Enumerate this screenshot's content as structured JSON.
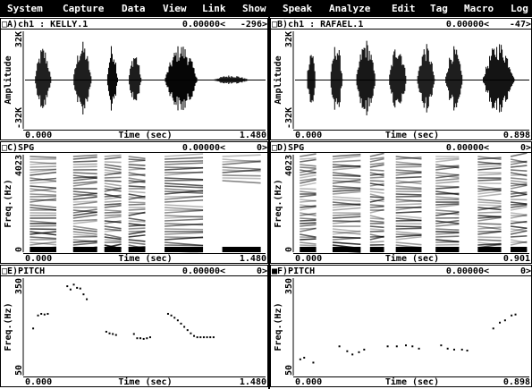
{
  "menu": [
    "System",
    "Capture",
    "Data",
    "View",
    "Link",
    "Show",
    "Speak",
    "Analyze",
    "Edit",
    "Tag",
    "Macro",
    "Log"
  ],
  "panels": [
    {
      "label": "□A)ch1 : KELLY.1",
      "cursor": "0.00000<",
      "value": "-296>",
      "y_label": "Amplitude",
      "y_ticks": [
        "32K",
        "-32K"
      ],
      "x_start": "0.000",
      "x_label": "Time (sec)",
      "x_end": "1.480"
    },
    {
      "label": "□B)ch1 : RAFAEL.1",
      "cursor": "0.00000<",
      "value": "-47>",
      "y_label": "Amplitude",
      "y_ticks": [
        "32K",
        "-32K"
      ],
      "x_start": "0.000",
      "x_label": "Time (sec)",
      "x_end": "0.898"
    },
    {
      "label": "□C)SPG",
      "cursor": "0.00000<",
      "value": "0>",
      "y_label": "Freq.(Hz)",
      "y_ticks": [
        4023,
        0
      ],
      "x_start": "0.000",
      "x_label": "Time (sec)",
      "x_end": "1.480"
    },
    {
      "label": "□D)SPG",
      "cursor": "0.00000<",
      "value": "0>",
      "y_label": "Freq.(Hz)",
      "y_ticks": [
        4023,
        0
      ],
      "x_start": "0.000",
      "x_label": "Time (sec)",
      "x_end": "0.901"
    },
    {
      "label": "□E)PITCH",
      "cursor": "0.00000<",
      "value": "0>",
      "y_label": "Freq.(Hz)",
      "y_ticks": [
        350,
        50
      ],
      "x_start": "0.000",
      "x_label": "Time (sec)",
      "x_end": "1.480",
      "pitch": {
        "time": [
          0.05,
          0.08,
          0.1,
          0.12,
          0.14,
          0.26,
          0.28,
          0.3,
          0.32,
          0.34,
          0.36,
          0.38,
          0.5,
          0.52,
          0.54,
          0.56,
          0.67,
          0.69,
          0.71,
          0.73,
          0.75,
          0.77,
          0.88,
          0.9,
          0.92,
          0.94,
          0.96,
          0.98,
          1.0,
          1.02,
          1.04,
          1.06,
          1.08,
          1.1,
          1.12,
          1.14,
          1.16
        ],
        "hz": [
          195,
          235,
          240,
          238,
          240,
          325,
          315,
          330,
          320,
          318,
          300,
          285,
          185,
          180,
          178,
          175,
          178,
          165,
          165,
          163,
          165,
          168,
          240,
          235,
          228,
          220,
          210,
          200,
          190,
          180,
          172,
          168,
          168,
          168,
          168,
          168,
          168
        ]
      }
    },
    {
      "label": "■F)PITCH",
      "cursor": "0.00000<",
      "value": "0>",
      "y_label": "Freq.(Hz)",
      "y_ticks": [
        350,
        50
      ],
      "x_start": "0.000",
      "x_label": "Time (sec)",
      "x_end": "0.898",
      "pitch": {
        "time": [
          0.02,
          0.035,
          0.07,
          0.17,
          0.2,
          0.22,
          0.245,
          0.265,
          0.355,
          0.39,
          0.425,
          0.45,
          0.475,
          0.56,
          0.585,
          0.61,
          0.64,
          0.66,
          0.76,
          0.785,
          0.805,
          0.83,
          0.845
        ],
        "hz": [
          100,
          105,
          90,
          140,
          125,
          115,
          122,
          130,
          140,
          140,
          143,
          140,
          133,
          143,
          133,
          130,
          130,
          127,
          195,
          213,
          220,
          235,
          238
        ]
      }
    }
  ]
}
